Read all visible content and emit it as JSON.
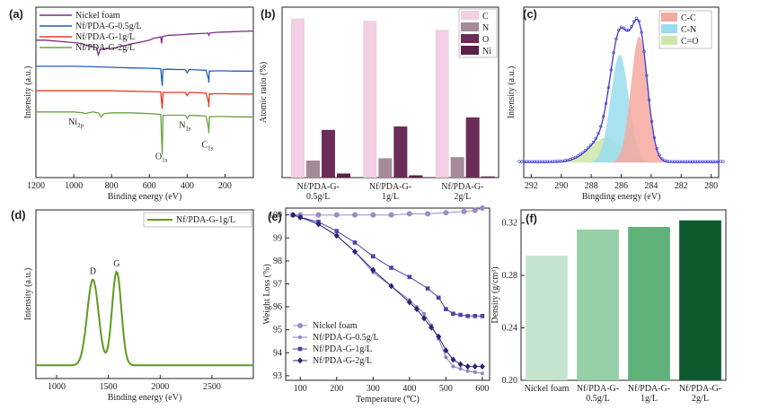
{
  "chart_data": [
    {
      "panel": "(a)",
      "type": "line",
      "xlabel": "Binding energy (eV)",
      "ylabel": "Intensity (a.u.)",
      "xlim": [
        1200,
        50
      ],
      "xticks": [
        1200,
        1000,
        800,
        600,
        400,
        200
      ],
      "legend_position": "top-left",
      "series": [
        {
          "name": "Nickel foam",
          "color": "#7b2d83",
          "x": [
            1200,
            1150,
            1100,
            1050,
            1000,
            960,
            940,
            900,
            880,
            870,
            860,
            850,
            820,
            800,
            780,
            760,
            740,
            720,
            700,
            680,
            660,
            640,
            620,
            600,
            580,
            560,
            540,
            535,
            532,
            520,
            500,
            480,
            450,
            420,
            400,
            380,
            340,
            300,
            290,
            285,
            280,
            260,
            240,
            200,
            150,
            100,
            80,
            60,
            50
          ],
          "y": [
            0.18,
            0.18,
            0.185,
            0.19,
            0.195,
            0.2,
            0.21,
            0.22,
            0.225,
            0.27,
            0.24,
            0.235,
            0.232,
            0.23,
            0.228,
            0.22,
            0.215,
            0.21,
            0.205,
            0.2,
            0.195,
            0.19,
            0.185,
            0.18,
            0.17,
            0.165,
            0.16,
            0.2,
            0.16,
            0.155,
            0.15,
            0.15,
            0.148,
            0.146,
            0.144,
            0.142,
            0.14,
            0.138,
            0.136,
            0.15,
            0.136,
            0.134,
            0.132,
            0.13,
            0.128,
            0.126,
            0.125,
            0.124,
            0.124
          ]
        },
        {
          "name": "Nf/PDA-G-0.5g/L",
          "color": "#1f5fb5",
          "x": [
            1200,
            1100,
            1000,
            900,
            800,
            700,
            600,
            540,
            535,
            532,
            528,
            500,
            450,
            410,
            400,
            390,
            350,
            300,
            287,
            285,
            283,
            250,
            200,
            150,
            100,
            80,
            60,
            50
          ],
          "y": [
            0.34,
            0.34,
            0.34,
            0.343,
            0.346,
            0.35,
            0.352,
            0.355,
            0.42,
            0.46,
            0.36,
            0.358,
            0.36,
            0.36,
            0.38,
            0.36,
            0.362,
            0.365,
            0.42,
            0.44,
            0.37,
            0.368,
            0.368,
            0.37,
            0.37,
            0.37,
            0.37,
            0.37
          ]
        },
        {
          "name": "Nf/PDA-G-1g/L",
          "color": "#e53a22",
          "x": [
            1200,
            1100,
            1000,
            900,
            800,
            700,
            600,
            540,
            535,
            532,
            528,
            500,
            450,
            410,
            400,
            390,
            350,
            300,
            287,
            285,
            283,
            250,
            200,
            150,
            100,
            80,
            60,
            50
          ],
          "y": [
            0.49,
            0.49,
            0.49,
            0.49,
            0.49,
            0.493,
            0.495,
            0.497,
            0.56,
            0.6,
            0.5,
            0.5,
            0.5,
            0.5,
            0.52,
            0.5,
            0.502,
            0.505,
            0.56,
            0.59,
            0.51,
            0.508,
            0.508,
            0.51,
            0.51,
            0.51,
            0.51,
            0.51
          ]
        },
        {
          "name": "Nf/PDA-G-2g/L",
          "color": "#6aa33c",
          "x": [
            1200,
            1100,
            1000,
            950,
            940,
            920,
            900,
            870,
            855,
            840,
            800,
            700,
            600,
            540,
            535,
            532,
            528,
            500,
            450,
            410,
            400,
            390,
            350,
            300,
            287,
            285,
            283,
            250,
            200,
            150,
            100,
            80,
            60,
            50
          ],
          "y": [
            0.62,
            0.62,
            0.62,
            0.625,
            0.63,
            0.625,
            0.62,
            0.625,
            0.65,
            0.63,
            0.625,
            0.625,
            0.63,
            0.635,
            0.78,
            0.88,
            0.64,
            0.64,
            0.64,
            0.64,
            0.66,
            0.64,
            0.642,
            0.645,
            0.72,
            0.75,
            0.65,
            0.648,
            0.648,
            0.65,
            0.65,
            0.65,
            0.65,
            0.65
          ]
        }
      ],
      "annotations": [
        {
          "text": "Ni",
          "sub": "2p",
          "x": 1000,
          "y": 0.72
        },
        {
          "text": "O",
          "sub": "1s",
          "x": 540,
          "y": 0.93
        },
        {
          "text": "N",
          "sub": "1s",
          "x": 415,
          "y": 0.74
        },
        {
          "text": "C",
          "sub": "1s",
          "x": 295,
          "y": 0.86
        }
      ]
    },
    {
      "panel": "(b)",
      "type": "bar",
      "ylabel": "Atomic ratio (%)",
      "ylim": [
        0,
        75
      ],
      "categories": [
        "Nf/PDA-G-0.5g/L",
        "Nf/PDA-G-1g/L",
        "Nf/PDA-G-2g/L"
      ],
      "category_lines": [
        [
          "Nf/PDA-G-",
          "0.5g/L"
        ],
        [
          "Nf/PDA-G-",
          "1g/L"
        ],
        [
          "Nf/PDA-G-",
          "2g/L"
        ]
      ],
      "legend_position": "top-right",
      "series": [
        {
          "name": "C",
          "color": "#f2cfe3",
          "values": [
            70,
            69,
            65
          ]
        },
        {
          "name": "N",
          "color": "#a58a9a",
          "values": [
            7.5,
            8.5,
            9
          ]
        },
        {
          "name": "O",
          "color": "#6b2d57",
          "values": [
            21,
            22.5,
            26.5
          ]
        },
        {
          "name": "Ni",
          "color": "#5a2046",
          "values": [
            1.8,
            1.0,
            0.5
          ]
        }
      ]
    },
    {
      "panel": "(c)",
      "type": "line",
      "xlabel": "Bingding energy (eV)",
      "ylabel": "Intensity (a.u.)",
      "xlim": [
        292.5,
        279.5
      ],
      "xticks": [
        292,
        290,
        288,
        286,
        284,
        282,
        280
      ],
      "legend_position": "top-right",
      "series": [
        {
          "name": "C-C",
          "color": "#f4a9a0",
          "center": 284.8,
          "sigma": 0.55,
          "amp": 0.82
        },
        {
          "name": "C-N",
          "color": "#9adcee",
          "center": 286.1,
          "sigma": 0.6,
          "amp": 0.7
        },
        {
          "name": "C=O",
          "color": "#cfe6a8",
          "center": 287.0,
          "sigma": 1.1,
          "amp": 0.16
        }
      ],
      "baseline": 0.04,
      "fit_color": "#3f3ad0"
    },
    {
      "panel": "(d)",
      "type": "line",
      "xlabel": "Binding energy (eV)",
      "ylabel": "Intensity (a.u.)",
      "xlim": [
        800,
        2900
      ],
      "xticks": [
        1000,
        1500,
        2000,
        2500
      ],
      "legend_position": "top-right",
      "series": [
        {
          "name": "Nf/PDA-G-1g/L",
          "color": "#5f9a1f",
          "peaks": [
            {
              "center": 1350,
              "sigma": 55,
              "amp": 0.55
            },
            {
              "center": 1580,
              "sigma": 45,
              "amp": 0.6
            }
          ],
          "baseline": 0.05
        }
      ],
      "annotations": [
        {
          "text": "D",
          "x": 1350
        },
        {
          "text": "G",
          "x": 1580
        }
      ]
    },
    {
      "panel": "(e)",
      "type": "scatter",
      "xlabel": "Temperature (℃)",
      "ylabel": "Weight Loss (%)",
      "xlim": [
        60,
        620
      ],
      "ylim": [
        92.8,
        100.3
      ],
      "xticks": [
        100,
        200,
        300,
        400,
        500,
        600
      ],
      "yticks": [
        93,
        94,
        95,
        96,
        97,
        98,
        99,
        100
      ],
      "legend_position": "bottom-left",
      "series": [
        {
          "name": "Nickel foam",
          "color": "#9b8ac8",
          "marker": "circle",
          "x": [
            80,
            100,
            150,
            200,
            250,
            300,
            350,
            400,
            450,
            500,
            550,
            580,
            600
          ],
          "y": [
            100,
            100,
            100,
            100,
            100,
            100,
            100,
            100.05,
            100.05,
            100.1,
            100.15,
            100.2,
            100.3
          ]
        },
        {
          "name": "Nf/PDA-G-0.5g/L",
          "color": "#8e7fc6",
          "marker": "dot",
          "x": [
            80,
            100,
            150,
            200,
            250,
            300,
            350,
            400,
            420,
            440,
            460,
            480,
            500,
            520,
            540,
            560,
            580,
            600
          ],
          "y": [
            100,
            99.9,
            99.6,
            99.1,
            98.4,
            97.5,
            96.9,
            96.3,
            96.0,
            95.7,
            95.2,
            94.6,
            93.8,
            93.4,
            93.3,
            93.2,
            93.15,
            93.1
          ]
        },
        {
          "name": "Nf/PDA-G-1g/L",
          "color": "#4a43a6",
          "marker": "square",
          "x": [
            80,
            100,
            150,
            200,
            250,
            300,
            350,
            400,
            450,
            480,
            500,
            520,
            540,
            560,
            580,
            600
          ],
          "y": [
            100,
            99.9,
            99.7,
            99.3,
            98.8,
            98.2,
            97.7,
            97.3,
            96.8,
            96.4,
            95.9,
            95.7,
            95.65,
            95.6,
            95.6,
            95.6
          ]
        },
        {
          "name": "Nf/PDA-G-2g/L",
          "color": "#2a2478",
          "marker": "diamond",
          "x": [
            80,
            100,
            150,
            200,
            250,
            300,
            350,
            400,
            420,
            440,
            460,
            480,
            500,
            520,
            540,
            560,
            580,
            600
          ],
          "y": [
            100,
            99.9,
            99.6,
            99.1,
            98.4,
            97.6,
            96.9,
            96.2,
            95.9,
            95.5,
            95.1,
            94.7,
            94.1,
            93.7,
            93.5,
            93.4,
            93.4,
            93.4
          ]
        }
      ]
    },
    {
      "panel": "(f)",
      "type": "bar",
      "ylabel": "Density (g/cm³)",
      "ylim": [
        0.2,
        0.33
      ],
      "yticks": [
        0.2,
        0.24,
        0.28,
        0.32
      ],
      "categories": [
        "Nickel foam",
        "Nf/PDA-G-0.5g/L",
        "Nf/PDA-G-1g/L",
        "Nf/PDA-G-2g/L"
      ],
      "category_lines": [
        [
          "Nickel foam"
        ],
        [
          "Nf/PDA-G-",
          "0.5g/L"
        ],
        [
          "Nf/PDA-G-",
          "1g/L"
        ],
        [
          "Nf/PDA-G-",
          "2g/L"
        ]
      ],
      "colors": [
        "#c5e4cd",
        "#95d0a7",
        "#5fb27a",
        "#0e5a2e"
      ],
      "values": [
        0.295,
        0.315,
        0.317,
        0.322
      ]
    }
  ]
}
